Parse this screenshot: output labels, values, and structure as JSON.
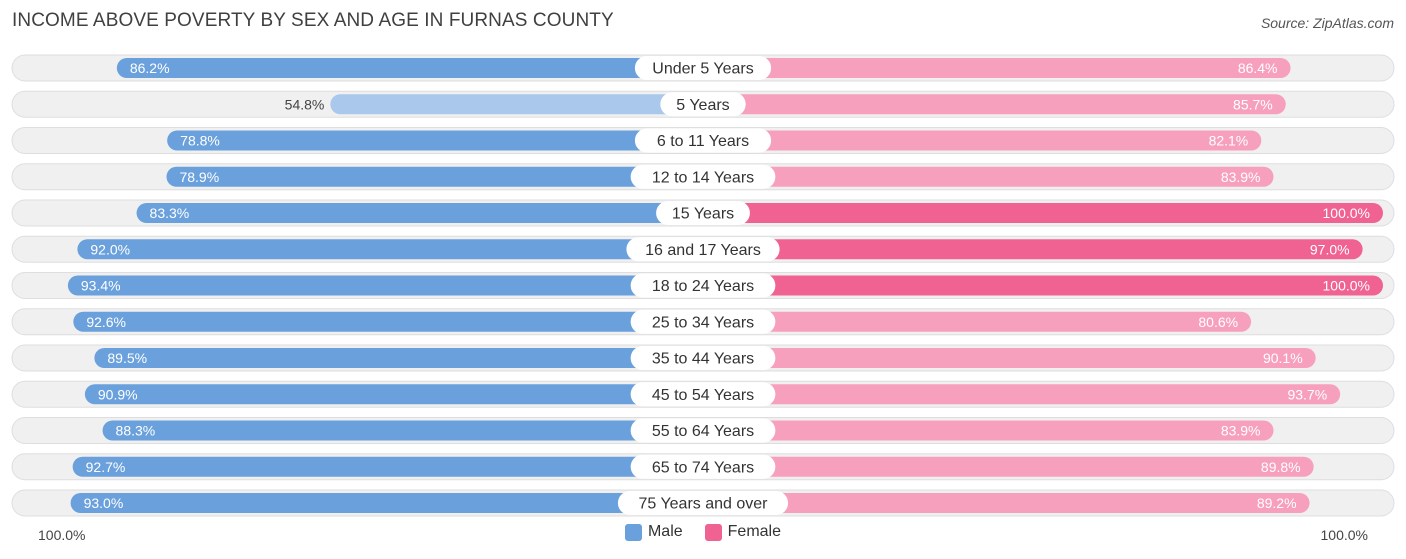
{
  "title": "INCOME ABOVE POVERTY BY SEX AND AGE IN FURNAS COUNTY",
  "source": "Source: ZipAtlas.com",
  "colors": {
    "male_strong": "#6aa0dc",
    "male_light": "#a9c8ec",
    "female_strong": "#f06292",
    "female_light": "#f7a0bd",
    "track": "#f0f0f0",
    "track_border": "#dedede"
  },
  "chart_data": {
    "type": "bar",
    "orientation": "horizontal-diverging",
    "title": "INCOME ABOVE POVERTY BY SEX AND AGE IN FURNAS COUNTY",
    "categories": [
      "Under 5 Years",
      "5 Years",
      "6 to 11 Years",
      "12 to 14 Years",
      "15 Years",
      "16 and 17 Years",
      "18 to 24 Years",
      "25 to 34 Years",
      "35 to 44 Years",
      "45 to 54 Years",
      "55 to 64 Years",
      "65 to 74 Years",
      "75 Years and over"
    ],
    "series": [
      {
        "name": "Male",
        "values": [
          86.2,
          54.8,
          78.8,
          78.9,
          83.3,
          92.0,
          93.4,
          92.6,
          89.5,
          90.9,
          88.3,
          92.7,
          93.0
        ],
        "labels": [
          "86.2%",
          "54.8%",
          "78.8%",
          "78.9%",
          "83.3%",
          "92.0%",
          "93.4%",
          "92.6%",
          "89.5%",
          "90.9%",
          "88.3%",
          "92.7%",
          "93.0%"
        ]
      },
      {
        "name": "Female",
        "values": [
          86.4,
          85.7,
          82.1,
          83.9,
          100.0,
          97.0,
          100.0,
          80.6,
          90.1,
          93.7,
          83.9,
          89.8,
          89.2
        ],
        "labels": [
          "86.4%",
          "85.7%",
          "82.1%",
          "83.9%",
          "100.0%",
          "97.0%",
          "100.0%",
          "80.6%",
          "90.1%",
          "93.7%",
          "83.9%",
          "89.8%",
          "89.2%"
        ]
      }
    ],
    "xlim": [
      0,
      100
    ],
    "axis_left_label": "100.0%",
    "axis_right_label": "100.0%",
    "legend": {
      "position": "bottom-center",
      "entries": [
        "Male",
        "Female"
      ]
    },
    "grid": false
  }
}
